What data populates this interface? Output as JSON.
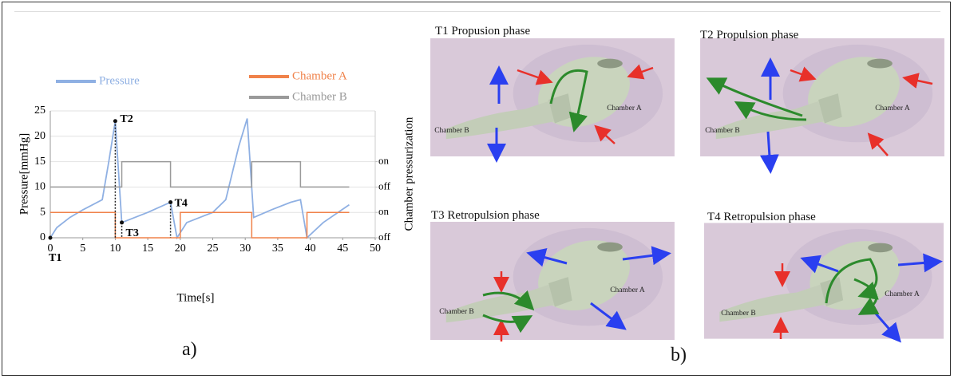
{
  "chart_data": {
    "type": "line",
    "xlabel": "Time[s]",
    "ylabel": "Pressure[mmHg]",
    "y2label": "Chamber pressurization",
    "xlim": [
      0,
      50
    ],
    "xticks": [
      0,
      5,
      10,
      15,
      20,
      25,
      30,
      35,
      40,
      45,
      50
    ],
    "ylim": [
      0,
      25
    ],
    "yticks": [
      0,
      5,
      10,
      15,
      20,
      25
    ],
    "y2lim": [
      0,
      25
    ],
    "y2ticks": [
      {
        "value": 0,
        "label": "off"
      },
      {
        "value": 5,
        "label": "on"
      },
      {
        "value": 10,
        "label": "off"
      },
      {
        "value": 15,
        "label": "on"
      }
    ],
    "grid": true,
    "legend": "top",
    "series": [
      {
        "name": "Pressure",
        "color": "#8fb0e3",
        "x": [
          0,
          1,
          3,
          5,
          8,
          9,
          10,
          11,
          13,
          15,
          18.5,
          19.5,
          21,
          23,
          25,
          27,
          29,
          30.3,
          31.3,
          34,
          37,
          38.5,
          39.5,
          42,
          46
        ],
        "values": [
          0,
          2,
          4,
          5.5,
          7.5,
          15,
          23,
          3,
          4,
          5,
          7,
          0,
          3,
          4,
          5,
          7.5,
          18,
          23.5,
          4,
          5.5,
          7,
          7.5,
          0,
          3,
          6.5
        ]
      },
      {
        "name": "Chamber A",
        "color": "#f0824a",
        "axis": "y2",
        "x": [
          0,
          10,
          10,
          20,
          20,
          31,
          31,
          39.5,
          39.5,
          46
        ],
        "values": [
          5,
          5,
          0,
          0,
          5,
          5,
          0,
          0,
          5,
          5
        ]
      },
      {
        "name": "Chamber B",
        "color": "#9a9a9a",
        "axis": "y2",
        "x": [
          0,
          11,
          11,
          18.5,
          18.5,
          31,
          31,
          38.5,
          38.5,
          46
        ],
        "values": [
          10,
          10,
          15,
          15,
          10,
          10,
          15,
          15,
          10,
          10
        ]
      }
    ],
    "annotations": [
      {
        "text": "T1",
        "x": 0,
        "y": 0
      },
      {
        "text": "T2",
        "x": 10,
        "y": 23
      },
      {
        "text": "T3",
        "x": 11,
        "y": 3
      },
      {
        "text": "T4",
        "x": 18.5,
        "y": 7
      }
    ]
  },
  "panel_labels": [
    "a)",
    "b)"
  ],
  "phases": [
    {
      "title": "T1 Propusion phase",
      "chamber_a": "Chamber A",
      "chamber_b": "Chamber B"
    },
    {
      "title": "T2 Propulsion phase",
      "chamber_a": "Chamber A",
      "chamber_b": "Chamber B"
    },
    {
      "title": "T3 Retropulsion phase",
      "chamber_a": "Chamber A",
      "chamber_b": "Chamber B"
    },
    {
      "title": "T4 Retropulsion phase",
      "chamber_a": "Chamber A",
      "chamber_b": "Chamber B"
    }
  ]
}
